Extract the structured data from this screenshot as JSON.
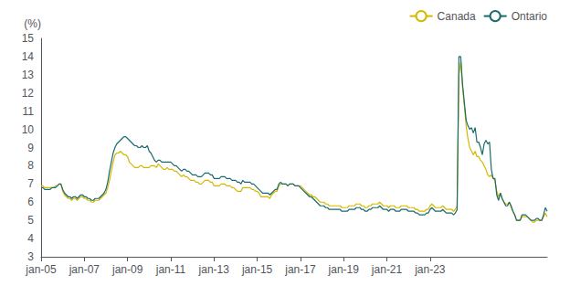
{
  "chart_data": {
    "type": "line",
    "ylabel": "(%)",
    "ylim": [
      3,
      15
    ],
    "yticks": [
      3,
      4,
      5,
      6,
      7,
      8,
      9,
      10,
      11,
      12,
      13,
      14,
      15
    ],
    "grid": false,
    "legend": "upper right",
    "categories": [
      "jan-05",
      null,
      null,
      null,
      null,
      null,
      null,
      null,
      null,
      null,
      null,
      null,
      null,
      null,
      null,
      null,
      null,
      null,
      null,
      null,
      null,
      null,
      null,
      null,
      "jan-07",
      null,
      null,
      null,
      null,
      null,
      null,
      null,
      null,
      null,
      null,
      null,
      null,
      null,
      null,
      null,
      null,
      null,
      null,
      null,
      null,
      null,
      null,
      null,
      "jan-09",
      null,
      null,
      null,
      null,
      null,
      null,
      null,
      null,
      null,
      null,
      null,
      null,
      null,
      null,
      null,
      null,
      null,
      null,
      null,
      null,
      null,
      null,
      null,
      "jan-11",
      null,
      null,
      null,
      null,
      null,
      null,
      null,
      null,
      null,
      null,
      null,
      null,
      null,
      null,
      null,
      null,
      null,
      null,
      null,
      null,
      null,
      null,
      null,
      "jan-13",
      null,
      null,
      null,
      null,
      null,
      null,
      null,
      null,
      null,
      null,
      null,
      null,
      null,
      null,
      null,
      null,
      null,
      null,
      null,
      null,
      null,
      null,
      null,
      "jan-15",
      null,
      null,
      null,
      null,
      null,
      null,
      null,
      null,
      null,
      null,
      null,
      null,
      null,
      null,
      null,
      null,
      null,
      null,
      null,
      null,
      null,
      null,
      null,
      "jan-17",
      null,
      null,
      null,
      null,
      null,
      null,
      null,
      null,
      null,
      null,
      null,
      null,
      null,
      null,
      null,
      null,
      null,
      null,
      null,
      null,
      null,
      null,
      null,
      "jan-19",
      null,
      null,
      null,
      null,
      null,
      null,
      null,
      null,
      null,
      null,
      null,
      null,
      null,
      null,
      null,
      null,
      null,
      null,
      null,
      null,
      null,
      null,
      null,
      "jan-21",
      null,
      null,
      null,
      null,
      null,
      null,
      null,
      null,
      null,
      null,
      null,
      null,
      null,
      null,
      null,
      null,
      null,
      null,
      null,
      null,
      null,
      null,
      null,
      "jan-23",
      null,
      null,
      null,
      null,
      null,
      null,
      null,
      null,
      null,
      null,
      null,
      null,
      null,
      null,
      null,
      null,
      null,
      null,
      null,
      null,
      null,
      null,
      null,
      null,
      null,
      null,
      null,
      null,
      null,
      null,
      null,
      null,
      null,
      null,
      null,
      null,
      null,
      null,
      null,
      null,
      null,
      null,
      null,
      null,
      null,
      null,
      null,
      null,
      null,
      null,
      null,
      null,
      null,
      null,
      null,
      null,
      null,
      null,
      null,
      null,
      null,
      null,
      null,
      null,
      null
    ],
    "series": [
      {
        "name": "Canada",
        "color": "#D4B800",
        "values": [
          6.9,
          6.9,
          6.8,
          6.8,
          6.8,
          6.8,
          6.8,
          6.8,
          6.9,
          6.9,
          7.0,
          7.0,
          6.6,
          6.4,
          6.3,
          6.2,
          6.2,
          6.1,
          6.2,
          6.2,
          6.1,
          6.2,
          6.3,
          6.3,
          6.2,
          6.2,
          6.1,
          6.1,
          6.0,
          6.0,
          6.1,
          6.1,
          6.1,
          6.2,
          6.3,
          6.4,
          6.5,
          6.8,
          7.2,
          7.7,
          8.2,
          8.6,
          8.7,
          8.7,
          8.8,
          8.7,
          8.6,
          8.6,
          8.5,
          8.2,
          8.1,
          8.0,
          7.9,
          7.9,
          7.9,
          8.0,
          8.0,
          7.9,
          7.9,
          7.9,
          7.9,
          8.0,
          8.0,
          8.0,
          7.9,
          8.1,
          8.0,
          7.9,
          7.8,
          7.8,
          7.9,
          7.8,
          7.8,
          7.8,
          7.7,
          7.7,
          7.6,
          7.5,
          7.4,
          7.5,
          7.4,
          7.4,
          7.3,
          7.2,
          7.2,
          7.2,
          7.1,
          7.1,
          7.0,
          7.0,
          7.1,
          7.2,
          7.2,
          7.2,
          7.1,
          7.1,
          6.9,
          6.9,
          6.9,
          6.9,
          7.0,
          7.0,
          7.0,
          6.9,
          6.9,
          6.9,
          6.8,
          6.8,
          6.7,
          6.6,
          6.6,
          6.6,
          6.8,
          6.8,
          6.8,
          6.8,
          6.8,
          6.7,
          6.7,
          6.6,
          6.6,
          6.5,
          6.3,
          6.3,
          6.3,
          6.3,
          6.3,
          6.2,
          6.4,
          6.5,
          6.6,
          6.6,
          6.9,
          7.0,
          7.0,
          7.0,
          7.0,
          6.9,
          7.0,
          7.0,
          7.0,
          6.9,
          6.9,
          6.9,
          6.9,
          6.8,
          6.7,
          6.6,
          6.5,
          6.4,
          6.4,
          6.3,
          6.3,
          6.2,
          6.1,
          6.0,
          6.0,
          6.0,
          5.9,
          5.9,
          5.8,
          5.8,
          5.8,
          5.8,
          5.8,
          5.8,
          5.8,
          5.7,
          5.7,
          5.7,
          5.7,
          5.8,
          5.8,
          5.8,
          5.8,
          5.9,
          5.9,
          5.9,
          5.8,
          5.8,
          5.7,
          5.7,
          5.8,
          5.8,
          5.9,
          5.9,
          5.9,
          5.9,
          6.0,
          5.9,
          5.8,
          5.8,
          5.8,
          5.7,
          5.8,
          5.8,
          5.8,
          5.7,
          5.7,
          5.7,
          5.8,
          5.8,
          5.8,
          5.8,
          5.7,
          5.7,
          5.7,
          5.7,
          5.6,
          5.6,
          5.5,
          5.5,
          5.5,
          5.5,
          5.6,
          5.6,
          5.8,
          5.9,
          5.8,
          5.7,
          5.7,
          5.7,
          5.7,
          5.8,
          5.7,
          5.6,
          5.6,
          5.6,
          5.6,
          5.5,
          5.6,
          5.8,
          13.0,
          13.7,
          12.3,
          11.3,
          10.2,
          9.5,
          9.0,
          8.8,
          8.6,
          8.8,
          8.5,
          8.5,
          8.3,
          8.2,
          8.0,
          7.8,
          7.5,
          7.4,
          7.5,
          7.3,
          7.2,
          6.6,
          6.3,
          6.5,
          6.2,
          6.0,
          5.9,
          5.9,
          6.0,
          5.7,
          5.5,
          5.3,
          5.0,
          5.0,
          5.0,
          5.2,
          5.2,
          5.2,
          5.2,
          5.1,
          5.0,
          4.9,
          4.9,
          5.0,
          5.0,
          5.0,
          5.0,
          5.2,
          5.4,
          5.2
        ]
      },
      {
        "name": "Ontario",
        "color": "#1A6B6B",
        "values": [
          6.8,
          6.8,
          6.7,
          6.7,
          6.7,
          6.7,
          6.8,
          6.8,
          6.8,
          6.9,
          7.0,
          7.0,
          6.7,
          6.5,
          6.4,
          6.3,
          6.3,
          6.2,
          6.3,
          6.3,
          6.2,
          6.3,
          6.4,
          6.4,
          6.3,
          6.3,
          6.2,
          6.2,
          6.1,
          6.1,
          6.2,
          6.2,
          6.2,
          6.3,
          6.4,
          6.5,
          6.7,
          7.1,
          7.7,
          8.2,
          8.7,
          9.0,
          9.2,
          9.3,
          9.4,
          9.5,
          9.6,
          9.6,
          9.5,
          9.4,
          9.3,
          9.2,
          9.1,
          9.1,
          9.0,
          9.0,
          9.1,
          9.0,
          9.0,
          9.1,
          8.8,
          8.7,
          8.5,
          8.3,
          8.2,
          8.3,
          8.3,
          8.2,
          8.2,
          8.2,
          8.2,
          8.2,
          8.2,
          8.1,
          8.0,
          8.0,
          7.9,
          7.8,
          7.7,
          7.8,
          7.8,
          7.7,
          7.7,
          7.6,
          7.5,
          7.5,
          7.5,
          7.4,
          7.4,
          7.4,
          7.5,
          7.6,
          7.6,
          7.6,
          7.5,
          7.5,
          7.3,
          7.3,
          7.3,
          7.3,
          7.4,
          7.4,
          7.4,
          7.3,
          7.3,
          7.3,
          7.2,
          7.2,
          7.2,
          7.1,
          7.1,
          7.0,
          7.2,
          7.1,
          7.1,
          7.1,
          7.1,
          7.0,
          7.0,
          6.9,
          6.8,
          6.7,
          6.6,
          6.5,
          6.5,
          6.5,
          6.5,
          6.4,
          6.5,
          6.6,
          6.7,
          6.7,
          7.0,
          7.1,
          7.0,
          7.0,
          7.0,
          6.9,
          7.0,
          7.0,
          7.0,
          6.9,
          6.9,
          6.9,
          6.8,
          6.7,
          6.6,
          6.5,
          6.4,
          6.3,
          6.3,
          6.2,
          6.1,
          6.0,
          5.9,
          5.8,
          5.8,
          5.8,
          5.7,
          5.7,
          5.6,
          5.6,
          5.6,
          5.6,
          5.6,
          5.6,
          5.6,
          5.5,
          5.5,
          5.5,
          5.5,
          5.6,
          5.6,
          5.6,
          5.6,
          5.7,
          5.7,
          5.7,
          5.6,
          5.6,
          5.5,
          5.5,
          5.6,
          5.6,
          5.7,
          5.7,
          5.7,
          5.7,
          5.8,
          5.7,
          5.6,
          5.6,
          5.6,
          5.5,
          5.6,
          5.6,
          5.6,
          5.5,
          5.5,
          5.5,
          5.6,
          5.6,
          5.6,
          5.6,
          5.5,
          5.5,
          5.5,
          5.5,
          5.4,
          5.4,
          5.3,
          5.3,
          5.3,
          5.3,
          5.4,
          5.4,
          5.6,
          5.7,
          5.6,
          5.5,
          5.5,
          5.5,
          5.5,
          5.6,
          5.5,
          5.4,
          5.4,
          5.4,
          5.4,
          5.3,
          5.4,
          5.6,
          14.0,
          14.0,
          12.5,
          11.5,
          10.5,
          10.2,
          10.0,
          10.1,
          9.8,
          10.1,
          9.3,
          9.3,
          9.0,
          8.6,
          9.2,
          9.4,
          9.2,
          9.3,
          7.8,
          7.3,
          7.3,
          6.4,
          6.1,
          6.5,
          6.2,
          6.0,
          5.8,
          5.8,
          6.0,
          5.8,
          5.5,
          5.3,
          5.0,
          5.0,
          5.0,
          5.3,
          5.3,
          5.3,
          5.2,
          5.1,
          5.0,
          5.0,
          5.0,
          5.1,
          5.1,
          5.0,
          5.0,
          5.3,
          5.7,
          5.5
        ]
      }
    ]
  }
}
